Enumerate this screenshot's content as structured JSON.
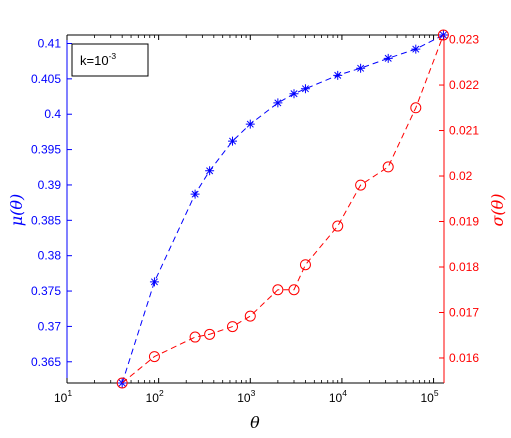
{
  "chart_data": {
    "type": "line",
    "xlabel": "θ",
    "xscale": "log",
    "xlim": [
      10,
      130000
    ],
    "x_ticks": [
      {
        "value": 10,
        "base": "10",
        "exp": "1"
      },
      {
        "value": 100,
        "base": "10",
        "exp": "2"
      },
      {
        "value": 1000,
        "base": "10",
        "exp": "3"
      },
      {
        "value": 10000,
        "base": "10",
        "exp": "4"
      },
      {
        "value": 100000,
        "base": "10",
        "exp": "5"
      }
    ],
    "annotation": {
      "base": "k=10",
      "exp": "-3",
      "placement": "top-left"
    },
    "grid": false,
    "series": [
      {
        "axis": "left",
        "ylabel": "μ(θ)",
        "color": "#0000ff",
        "marker": "asterisk",
        "linestyle": "dashed",
        "ylim": [
          0.362,
          0.4112
        ],
        "yticks": [
          "0.365",
          "0.37",
          "0.375",
          "0.38",
          "0.385",
          "0.39",
          "0.395",
          "0.4",
          "0.405",
          "0.41"
        ],
        "points": [
          {
            "x": 40,
            "y": 0.362
          },
          {
            "x": 90,
            "y": 0.3763
          },
          {
            "x": 250,
            "y": 0.3887
          },
          {
            "x": 360,
            "y": 0.392
          },
          {
            "x": 640,
            "y": 0.3962
          },
          {
            "x": 1000,
            "y": 0.3986
          },
          {
            "x": 2000,
            "y": 0.4016
          },
          {
            "x": 3000,
            "y": 0.4029
          },
          {
            "x": 4000,
            "y": 0.4036
          },
          {
            "x": 9000,
            "y": 0.4055
          },
          {
            "x": 16000,
            "y": 0.4065
          },
          {
            "x": 32000,
            "y": 0.4079
          },
          {
            "x": 64000,
            "y": 0.4092
          },
          {
            "x": 128000,
            "y": 0.4112
          }
        ]
      },
      {
        "axis": "right",
        "ylabel": "σ(θ)",
        "color": "#ff0000",
        "marker": "circle",
        "linestyle": "dashed",
        "ylim": [
          0.01545,
          0.0231
        ],
        "yticks": [
          "0.016",
          "0.017",
          "0.018",
          "0.019",
          "0.02",
          "0.021",
          "0.022",
          "0.023"
        ],
        "points": [
          {
            "x": 40,
            "y": 0.01545
          },
          {
            "x": 90,
            "y": 0.01603
          },
          {
            "x": 250,
            "y": 0.01646
          },
          {
            "x": 360,
            "y": 0.01652
          },
          {
            "x": 640,
            "y": 0.01669
          },
          {
            "x": 1000,
            "y": 0.01692
          },
          {
            "x": 2000,
            "y": 0.0175
          },
          {
            "x": 3000,
            "y": 0.0175
          },
          {
            "x": 4000,
            "y": 0.01805
          },
          {
            "x": 9000,
            "y": 0.0189
          },
          {
            "x": 16000,
            "y": 0.0198
          },
          {
            "x": 32000,
            "y": 0.0202
          },
          {
            "x": 64000,
            "y": 0.0215
          },
          {
            "x": 128000,
            "y": 0.0231
          }
        ]
      }
    ]
  }
}
